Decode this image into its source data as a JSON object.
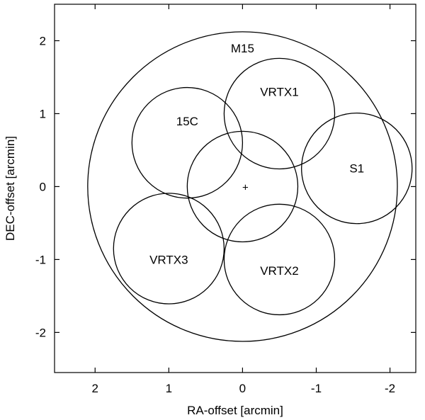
{
  "chart_data": {
    "type": "scatter",
    "xlabel": "RA-offset [arcmin]",
    "ylabel": "DEC-offset [arcmin]",
    "xlim": [
      2.55,
      -2.35
    ],
    "ylim": [
      -2.55,
      2.5
    ],
    "x_reversed": true,
    "x_ticks": [
      {
        "value": 2,
        "label": "2"
      },
      {
        "value": 1,
        "label": "1"
      },
      {
        "value": 0,
        "label": "0"
      },
      {
        "value": -1,
        "label": "-1"
      },
      {
        "value": -2,
        "label": "-2"
      }
    ],
    "y_ticks": [
      {
        "value": 2,
        "label": "2"
      },
      {
        "value": 1,
        "label": "1"
      },
      {
        "value": 0,
        "label": "0"
      },
      {
        "value": -1,
        "label": "-1"
      },
      {
        "value": -2,
        "label": "-2"
      }
    ],
    "grid": false,
    "center_marker": {
      "x": 0,
      "y": 0,
      "symbol": "+"
    },
    "circles": [
      {
        "name": "M15",
        "label": "M15",
        "x": 0.0,
        "y": 0.0,
        "r": 2.1
      },
      {
        "name": "center",
        "label": "",
        "x": 0.0,
        "y": 0.0,
        "r": 0.75
      },
      {
        "name": "VRTX1",
        "label": "VRTX1",
        "x": -0.5,
        "y": 1.0,
        "r": 0.75
      },
      {
        "name": "15C",
        "label": "15C",
        "x": 0.75,
        "y": 0.6,
        "r": 0.75
      },
      {
        "name": "S1",
        "label": "S1",
        "x": -1.55,
        "y": 0.25,
        "r": 0.75
      },
      {
        "name": "VRTX2",
        "label": "VRTX2",
        "x": -0.5,
        "y": -1.0,
        "r": 0.75
      },
      {
        "name": "VRTX3",
        "label": "VRTX3",
        "x": 1.0,
        "y": -0.85,
        "r": 0.75
      }
    ]
  }
}
